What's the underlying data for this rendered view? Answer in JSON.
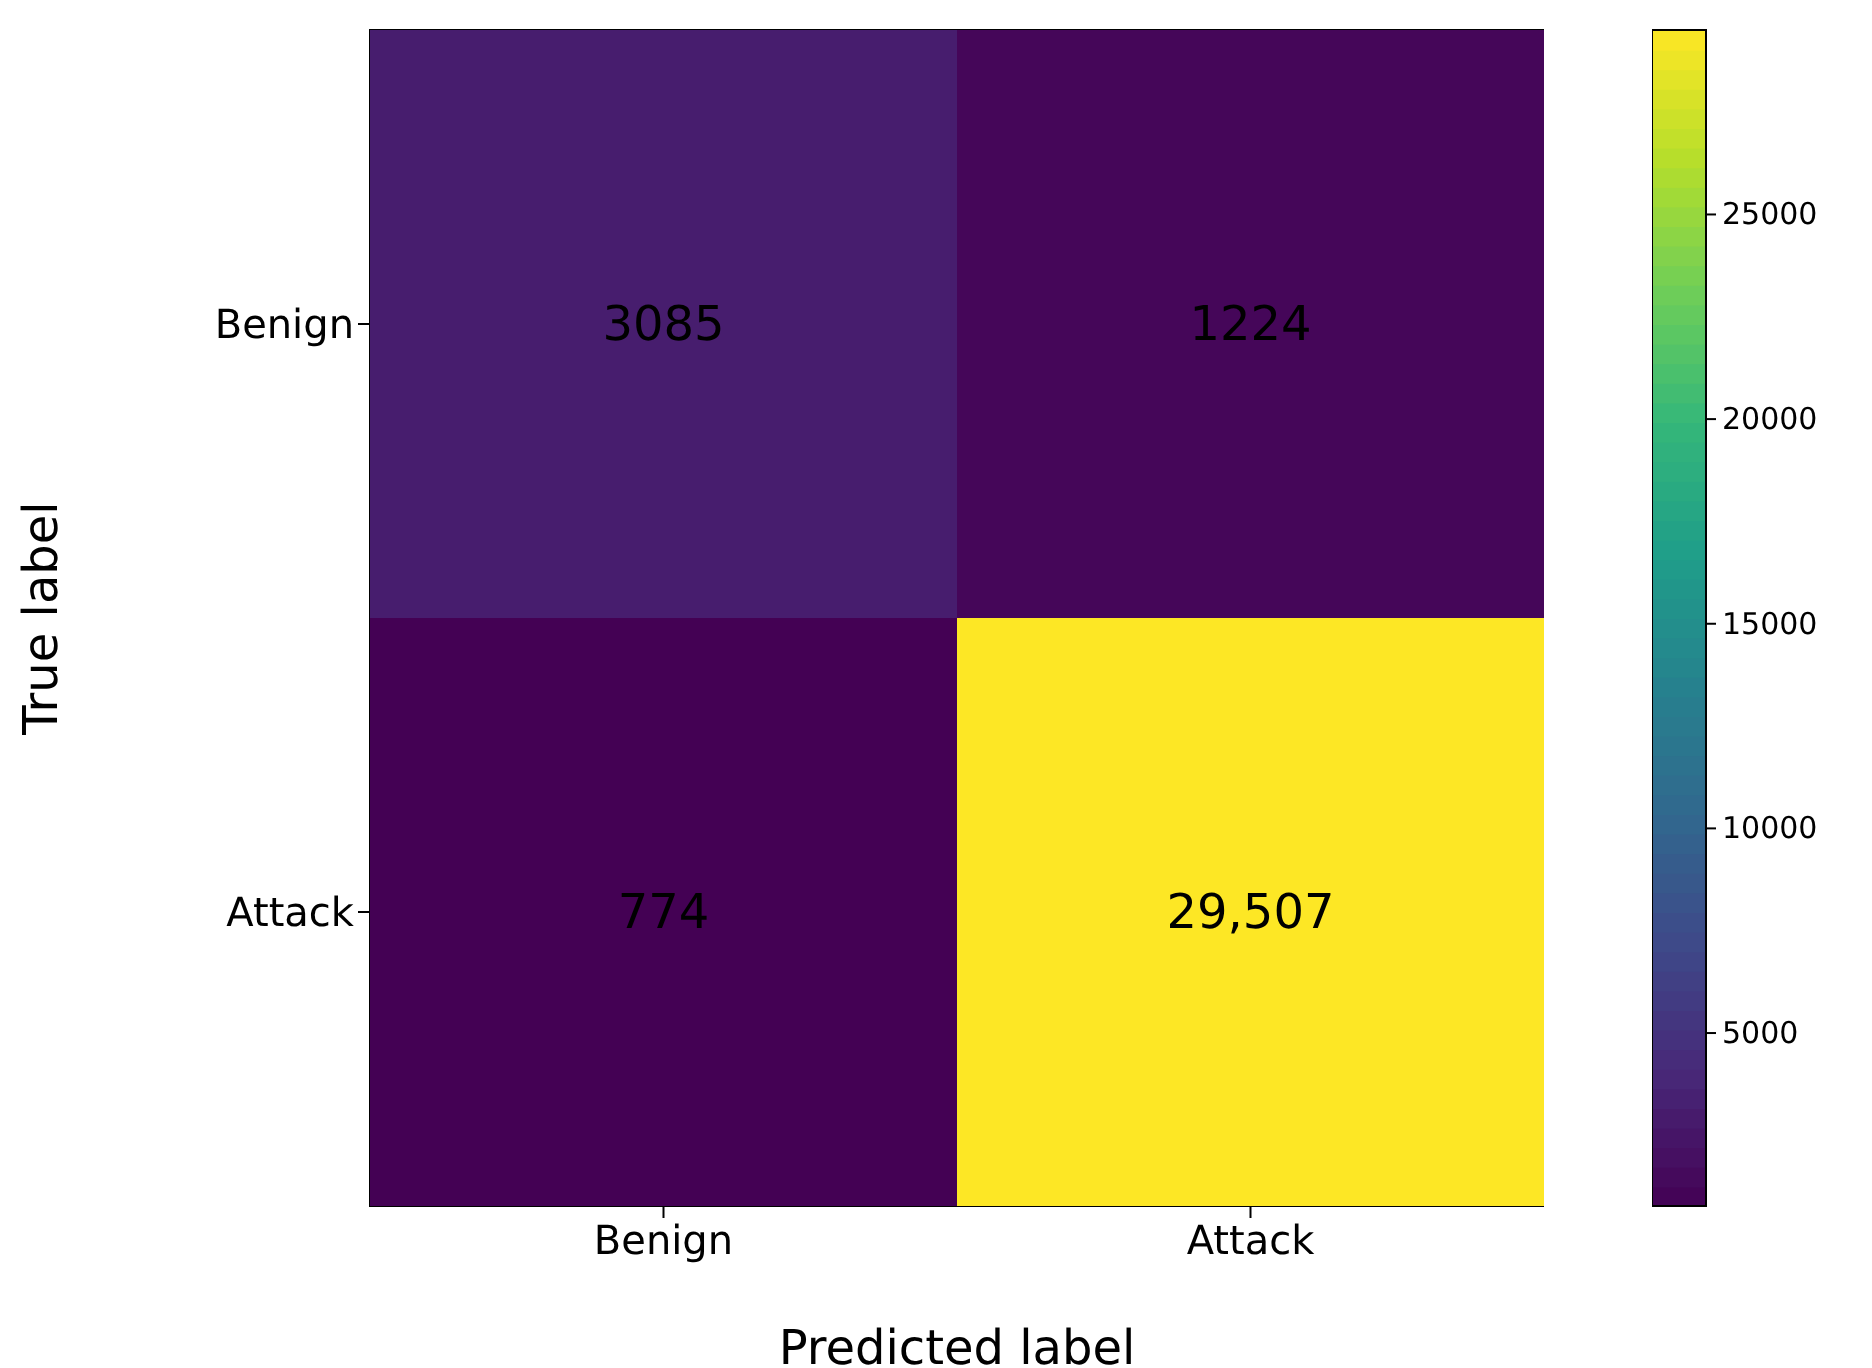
{
  "chart_data": {
    "type": "heatmap",
    "xlabel": "Predicted label",
    "ylabel": "True label",
    "categories": [
      "Benign",
      "Attack"
    ],
    "y_categories": [
      "Benign",
      "Attack"
    ],
    "cells": [
      [
        3085,
        1224
      ],
      [
        774,
        29507
      ]
    ],
    "cell_labels": [
      [
        "3085",
        "1224"
      ],
      [
        "774",
        "29,507"
      ]
    ],
    "clim": [
      774,
      29507
    ],
    "cticks": [
      5000,
      10000,
      15000,
      20000,
      25000
    ]
  }
}
